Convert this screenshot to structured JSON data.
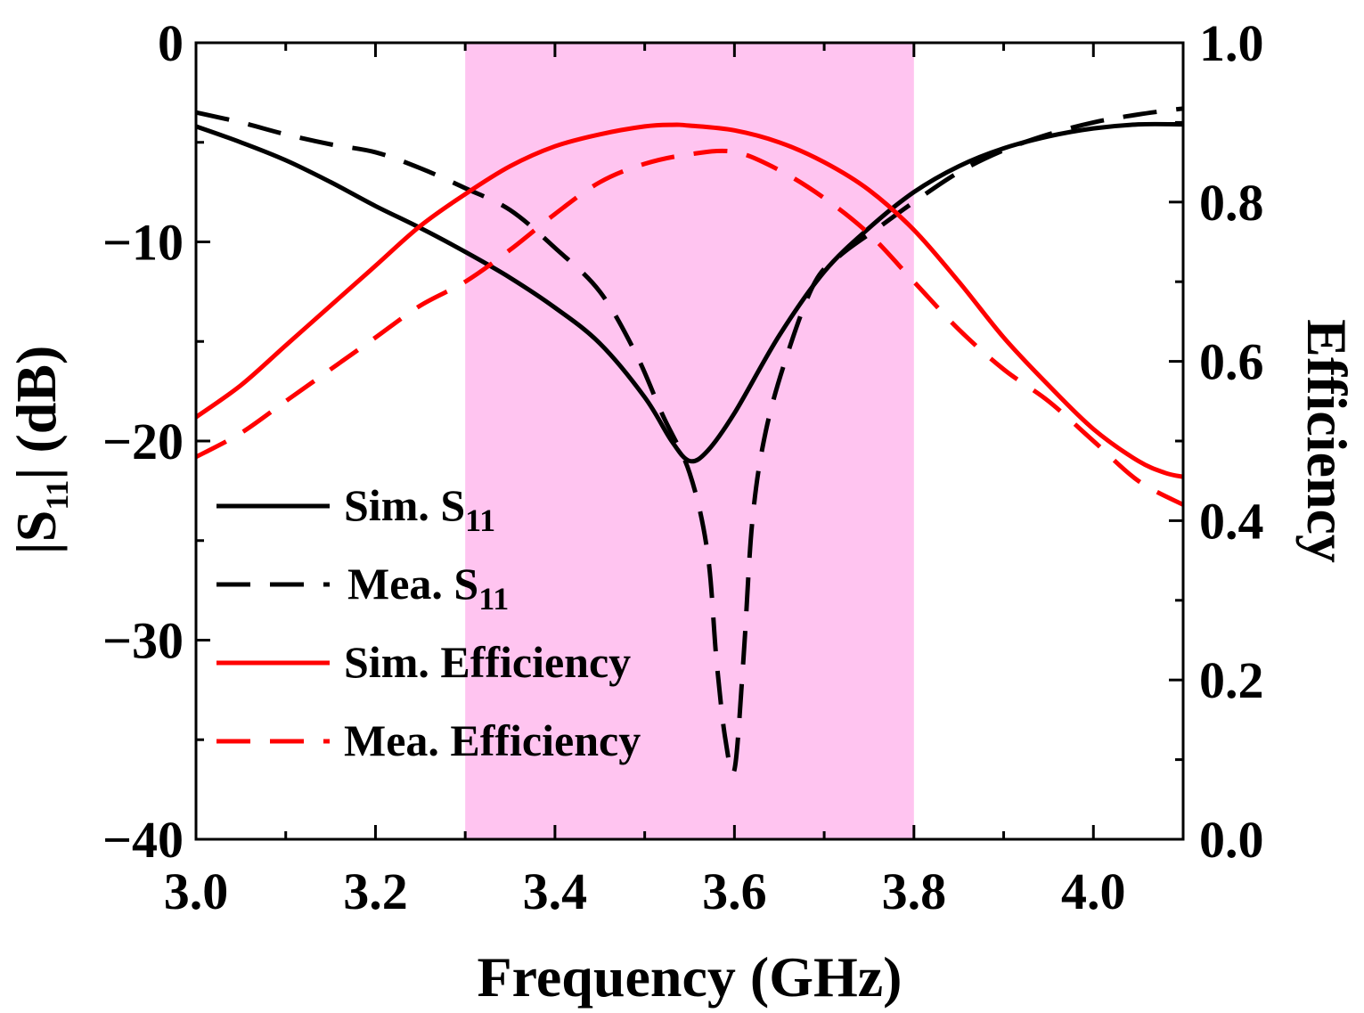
{
  "chart_data": {
    "type": "line",
    "xlabel": "Frequency (GHz)",
    "ylabel_left": "|S11| (dB)",
    "ylabel_left_parts": {
      "pre": "|S",
      "sub": "11",
      "post": "| (dB)"
    },
    "ylabel_right": "Efficiency",
    "xlim": [
      3.0,
      4.1
    ],
    "ylim_left": [
      -40,
      0
    ],
    "ylim_right": [
      0.0,
      1.0
    ],
    "x_ticks": [
      3.0,
      3.2,
      3.4,
      3.6,
      3.8,
      4.0
    ],
    "x_tick_labels": [
      "3.0",
      "3.2",
      "3.4",
      "3.6",
      "3.8",
      "4.0"
    ],
    "y_left_ticks": [
      0,
      -10,
      -20,
      -30,
      -40
    ],
    "y_left_tick_labels": [
      "0",
      "−10",
      "−20",
      "−30",
      "−40"
    ],
    "y_right_ticks": [
      1.0,
      0.8,
      0.6,
      0.4,
      0.2,
      0.0
    ],
    "y_right_tick_labels": [
      "1.0",
      "0.8",
      "0.6",
      "0.4",
      "0.2",
      "0.0"
    ],
    "shaded_band": {
      "x_start": 3.3,
      "x_end": 3.8,
      "color": "#ffc4f0"
    },
    "series": [
      {
        "name": "Sim. S11",
        "label_main": "Sim. S",
        "label_sub": "11",
        "axis": "left",
        "color": "#000000",
        "dash": "solid",
        "points": [
          [
            3.0,
            -4.2
          ],
          [
            3.05,
            -5.0
          ],
          [
            3.1,
            -5.9
          ],
          [
            3.15,
            -7.0
          ],
          [
            3.2,
            -8.2
          ],
          [
            3.25,
            -9.3
          ],
          [
            3.3,
            -10.5
          ],
          [
            3.35,
            -11.8
          ],
          [
            3.4,
            -13.3
          ],
          [
            3.45,
            -15.1
          ],
          [
            3.5,
            -17.8
          ],
          [
            3.53,
            -20.0
          ],
          [
            3.55,
            -21.0
          ],
          [
            3.57,
            -20.5
          ],
          [
            3.6,
            -18.6
          ],
          [
            3.65,
            -14.7
          ],
          [
            3.7,
            -11.5
          ],
          [
            3.75,
            -9.3
          ],
          [
            3.8,
            -7.5
          ],
          [
            3.85,
            -6.2
          ],
          [
            3.9,
            -5.3
          ],
          [
            3.95,
            -4.7
          ],
          [
            4.0,
            -4.3
          ],
          [
            4.05,
            -4.1
          ],
          [
            4.1,
            -4.1
          ]
        ]
      },
      {
        "name": "Mea. S11",
        "label_main": "Mea. S",
        "label_sub": "11",
        "axis": "left",
        "color": "#000000",
        "dash": "dashed",
        "points": [
          [
            3.0,
            -3.5
          ],
          [
            3.05,
            -4.0
          ],
          [
            3.1,
            -4.6
          ],
          [
            3.15,
            -5.1
          ],
          [
            3.2,
            -5.5
          ],
          [
            3.25,
            -6.3
          ],
          [
            3.3,
            -7.3
          ],
          [
            3.35,
            -8.4
          ],
          [
            3.4,
            -10.3
          ],
          [
            3.45,
            -12.5
          ],
          [
            3.49,
            -15.6
          ],
          [
            3.52,
            -18.7
          ],
          [
            3.55,
            -21.6
          ],
          [
            3.57,
            -25.6
          ],
          [
            3.58,
            -31.0
          ],
          [
            3.59,
            -35.0
          ],
          [
            3.6,
            -36.5
          ],
          [
            3.61,
            -31.0
          ],
          [
            3.62,
            -24.0
          ],
          [
            3.635,
            -19.5
          ],
          [
            3.66,
            -15.5
          ],
          [
            3.69,
            -12.0
          ],
          [
            3.72,
            -10.6
          ],
          [
            3.76,
            -9.3
          ],
          [
            3.8,
            -8.0
          ],
          [
            3.85,
            -6.5
          ],
          [
            3.9,
            -5.4
          ],
          [
            3.95,
            -4.6
          ],
          [
            4.0,
            -4.0
          ],
          [
            4.05,
            -3.6
          ],
          [
            4.1,
            -3.3
          ]
        ]
      },
      {
        "name": "Sim. Efficiency",
        "label_main": "Sim. Efficiency",
        "label_sub": "",
        "axis": "right",
        "color": "#ff0000",
        "dash": "solid",
        "points": [
          [
            3.0,
            0.53
          ],
          [
            3.05,
            0.57
          ],
          [
            3.1,
            0.62
          ],
          [
            3.15,
            0.67
          ],
          [
            3.2,
            0.72
          ],
          [
            3.25,
            0.77
          ],
          [
            3.3,
            0.81
          ],
          [
            3.35,
            0.845
          ],
          [
            3.4,
            0.87
          ],
          [
            3.45,
            0.885
          ],
          [
            3.5,
            0.895
          ],
          [
            3.53,
            0.897
          ],
          [
            3.55,
            0.896
          ],
          [
            3.6,
            0.89
          ],
          [
            3.65,
            0.875
          ],
          [
            3.7,
            0.85
          ],
          [
            3.75,
            0.815
          ],
          [
            3.8,
            0.765
          ],
          [
            3.85,
            0.7
          ],
          [
            3.9,
            0.63
          ],
          [
            3.95,
            0.57
          ],
          [
            4.0,
            0.515
          ],
          [
            4.05,
            0.475
          ],
          [
            4.08,
            0.46
          ],
          [
            4.1,
            0.455
          ]
        ]
      },
      {
        "name": "Mea. Efficiency",
        "label_main": "Mea. Efficiency",
        "label_sub": "",
        "axis": "right",
        "color": "#ff0000",
        "dash": "dashed",
        "points": [
          [
            3.0,
            0.48
          ],
          [
            3.05,
            0.51
          ],
          [
            3.1,
            0.55
          ],
          [
            3.15,
            0.59
          ],
          [
            3.2,
            0.63
          ],
          [
            3.25,
            0.67
          ],
          [
            3.3,
            0.7
          ],
          [
            3.35,
            0.74
          ],
          [
            3.4,
            0.785
          ],
          [
            3.45,
            0.825
          ],
          [
            3.5,
            0.848
          ],
          [
            3.55,
            0.86
          ],
          [
            3.6,
            0.863
          ],
          [
            3.65,
            0.84
          ],
          [
            3.7,
            0.805
          ],
          [
            3.75,
            0.76
          ],
          [
            3.8,
            0.7
          ],
          [
            3.85,
            0.64
          ],
          [
            3.9,
            0.59
          ],
          [
            3.95,
            0.55
          ],
          [
            4.0,
            0.5
          ],
          [
            4.05,
            0.45
          ],
          [
            4.1,
            0.42
          ]
        ]
      }
    ]
  }
}
